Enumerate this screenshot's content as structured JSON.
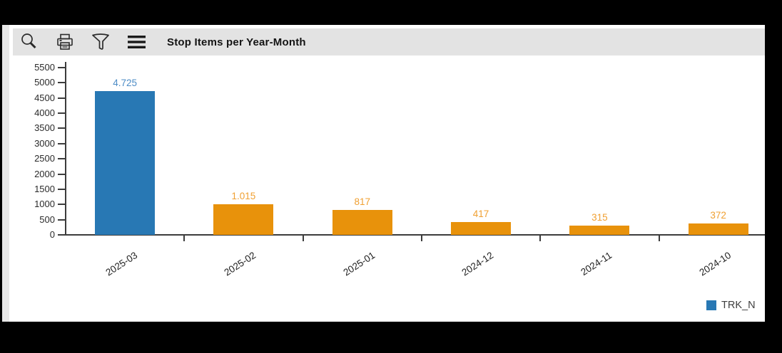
{
  "window": {
    "frame_color": "#000000",
    "panel_color": "#ffffff",
    "edge_strip_color": "#e8e8e8"
  },
  "toolbar": {
    "background": "#e3e3e3",
    "title": "Stop Items per Year-Month",
    "icons": [
      "search",
      "print",
      "filter",
      "menu"
    ]
  },
  "chart_data": {
    "type": "bar",
    "title": "Stop Items per Year-Month",
    "categories": [
      "2025-03",
      "2025-02",
      "2025-01",
      "2024-12",
      "2024-11",
      "2024-10"
    ],
    "values": [
      4725,
      1015,
      817,
      417,
      315,
      372
    ],
    "value_labels": [
      "4.725",
      "1.015",
      "817",
      "417",
      "315",
      "372"
    ],
    "bar_colors": [
      "#2878b4",
      "#e8920b",
      "#e8920b",
      "#e8920b",
      "#e8920b",
      "#e8920b"
    ],
    "value_label_colors": [
      "#4e8dc6",
      "#f0a032",
      "#f0a032",
      "#f0a032",
      "#f0a032",
      "#f0a032"
    ],
    "xlabel": "",
    "ylabel": "",
    "ylim": [
      0,
      5500
    ],
    "ytick_step": 500,
    "grid": false,
    "axis_color": "#3c3c3c",
    "tick_label_color": "#2b2b2b",
    "legend": {
      "position": "bottom-right",
      "entries": [
        {
          "label": "TRK_N",
          "color": "#2878b4"
        }
      ]
    }
  }
}
